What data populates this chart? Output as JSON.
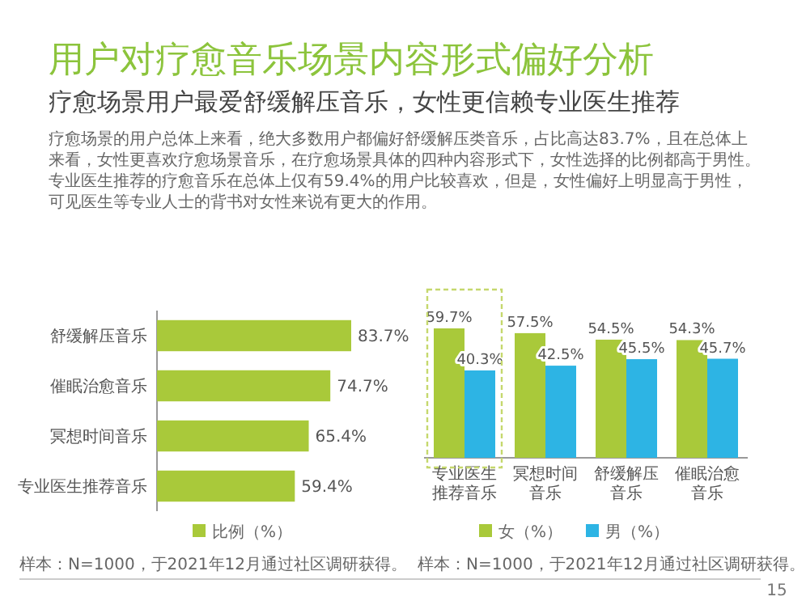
{
  "chart_data": [
    {
      "type": "bar",
      "orientation": "horizontal",
      "title": "用户对疗愈音乐场景内容形式偏好分析",
      "subtitle": "疗愈场景用户最爱舒缓解压音乐，女性更信赖专业医生推荐",
      "annotations": [
        "疗愈场景的用户总体上来看，绝大多数用户都偏好舒缓解压类音乐，占比高达83.7%，且在总体上来看，女性更喜欢疗愈场景音乐，在疗愈场景具体的四种内容形式下，女性选择的比例都高于男性。专业医生推荐的疗愈音乐在总体上仅有59.4%的用户比较喜欢，但是，女性偏好上明显高于男性，可见医生等专业人士的背书对女性来说有更大的作用。",
        "样本：N=1000，于2021年12月通过社区调研获得。"
      ],
      "categories": [
        "舒缓解压音乐",
        "催眠治愈音乐",
        "冥想时间音乐",
        "专业医生推荐音乐"
      ],
      "series": [
        {
          "name": "比例（%）",
          "color": "#a9c93a",
          "values": [
            83.7,
            74.7,
            65.4,
            59.4
          ],
          "value_labels": [
            "83.7%",
            "74.7%",
            "65.4%",
            "59.4%"
          ]
        }
      ],
      "legend": "bottom"
    },
    {
      "type": "bar",
      "annotations": [
        "样本：N=1000，于2021年12月通过社区调研获得。",
        "15"
      ],
      "categories": [
        "专业医生推荐音乐",
        "冥想时间音乐",
        "舒缓解压音乐",
        "催眠治愈音乐"
      ],
      "series": [
        {
          "name": "女（%）",
          "color": "#a9c93a",
          "values": [
            59.7,
            57.5,
            54.5,
            54.3
          ],
          "value_labels": [
            "59.7%",
            "57.5%",
            "54.5%",
            "54.3%"
          ]
        },
        {
          "name": "男（%）",
          "color": "#2db4e4",
          "values": [
            40.3,
            42.5,
            45.5,
            45.7
          ],
          "value_labels": [
            "40.3%",
            "42.5%",
            "45.5%",
            "45.7%"
          ]
        }
      ],
      "legend": "bottom"
    }
  ]
}
